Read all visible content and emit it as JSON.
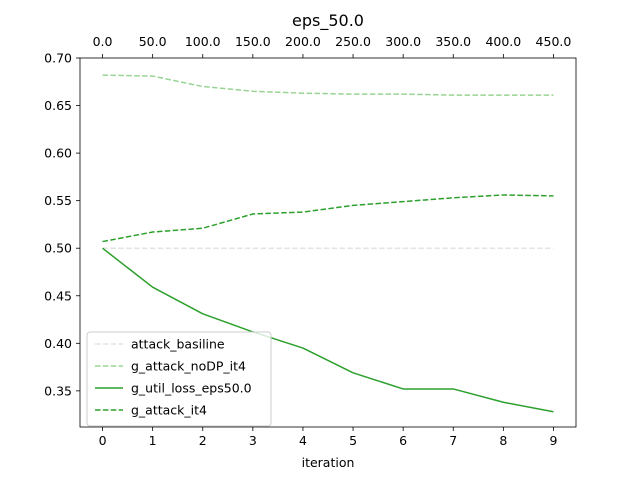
{
  "chart_data": {
    "type": "line",
    "title": "eps_50.0",
    "xlabel": "iteration",
    "ylabel": "",
    "x": [
      0,
      1,
      2,
      3,
      4,
      5,
      6,
      7,
      8,
      9
    ],
    "xlim": [
      -0.45,
      9.45
    ],
    "ylim": [
      0.312,
      0.7
    ],
    "x_ticks": [
      "0",
      "1",
      "2",
      "3",
      "4",
      "5",
      "6",
      "7",
      "8",
      "9"
    ],
    "top_x_ticks": [
      "0.0",
      "50.0",
      "100.0",
      "150.0",
      "200.0",
      "250.0",
      "300.0",
      "350.0",
      "400.0",
      "450.0"
    ],
    "y_ticks": [
      "0.35",
      "0.40",
      "0.45",
      "0.50",
      "0.55",
      "0.60",
      "0.65",
      "0.70"
    ],
    "y_tick_values": [
      0.35,
      0.4,
      0.45,
      0.5,
      0.55,
      0.6,
      0.65,
      0.7
    ],
    "grid": false,
    "legend_position": "lower-left",
    "series": [
      {
        "name": "attack_basiline",
        "color": "#e3e3e3",
        "dash": "dashed",
        "values": [
          0.5,
          0.5,
          0.5,
          0.5,
          0.5,
          0.5,
          0.5,
          0.5,
          0.5,
          0.5
        ]
      },
      {
        "name": "g_attack_noDP_it4",
        "color": "#98d594",
        "dash": "dashed",
        "values": [
          0.682,
          0.681,
          0.67,
          0.665,
          0.663,
          0.662,
          0.662,
          0.661,
          0.661,
          0.661
        ]
      },
      {
        "name": "g_util_loss_eps50.0",
        "color": "#2ca02c",
        "dash": "solid",
        "values": [
          0.5,
          0.459,
          0.431,
          0.412,
          0.395,
          0.369,
          0.352,
          0.352,
          0.338,
          0.328
        ]
      },
      {
        "name": "g_attack_it4",
        "color": "#2ca02c",
        "dash": "dashed",
        "values": [
          0.507,
          0.517,
          0.521,
          0.536,
          0.538,
          0.545,
          0.549,
          0.553,
          0.556,
          0.555
        ]
      }
    ]
  }
}
